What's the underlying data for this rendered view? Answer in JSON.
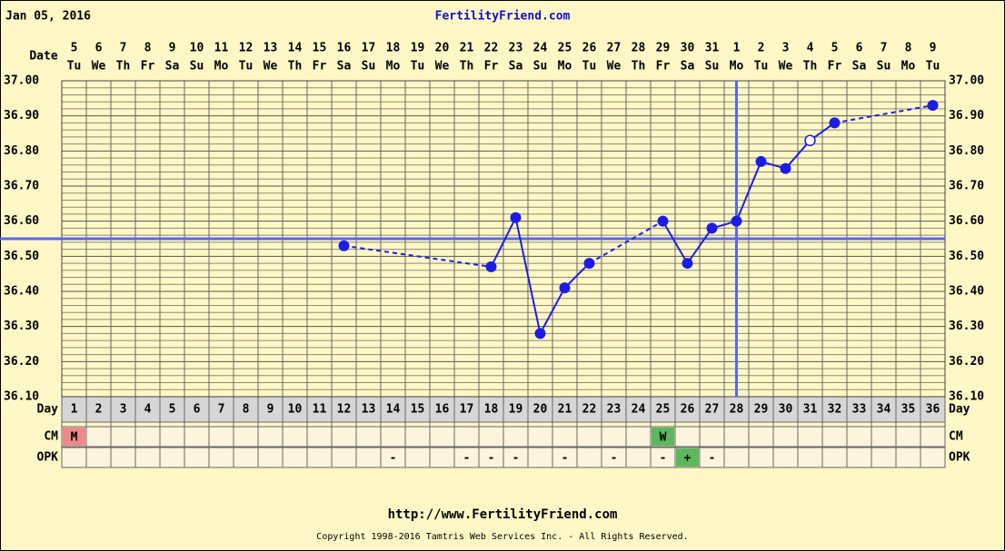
{
  "chart_data": {
    "type": "line",
    "title": "Jan 05, 2016",
    "site": "FertilityFriend.com",
    "date_label": "Date",
    "day_label": "Day",
    "cm_label": "CM",
    "opk_label": "OPK",
    "footer_url": "http://www.FertilityFriend.com",
    "copyright": "Copyright 1998-2016 Tamtris Web Services Inc. - All Rights Reserved.",
    "categories": [
      1,
      2,
      3,
      4,
      5,
      6,
      7,
      8,
      9,
      10,
      11,
      12,
      13,
      14,
      15,
      16,
      17,
      18,
      19,
      20,
      21,
      22,
      23,
      24,
      25,
      26,
      27,
      28,
      29,
      30,
      31,
      32,
      33,
      34,
      35,
      36
    ],
    "dates": [
      5,
      6,
      7,
      8,
      9,
      10,
      11,
      12,
      13,
      14,
      15,
      16,
      17,
      18,
      19,
      20,
      21,
      22,
      23,
      24,
      25,
      26,
      27,
      28,
      29,
      30,
      31,
      1,
      2,
      3,
      4,
      5,
      6,
      7,
      8,
      9
    ],
    "weekdays": [
      "Tu",
      "We",
      "Th",
      "Fr",
      "Sa",
      "Su",
      "Mo",
      "Tu",
      "We",
      "Th",
      "Fr",
      "Sa",
      "Su",
      "Mo",
      "Tu",
      "We",
      "Th",
      "Fr",
      "Sa",
      "Su",
      "Mo",
      "Tu",
      "We",
      "Th",
      "Fr",
      "Sa",
      "Su",
      "Mo",
      "Tu",
      "We",
      "Th",
      "Fr",
      "Sa",
      "Su",
      "Mo",
      "Tu"
    ],
    "values": [
      null,
      null,
      null,
      null,
      null,
      null,
      null,
      null,
      null,
      null,
      null,
      36.53,
      null,
      null,
      null,
      null,
      null,
      36.47,
      36.61,
      36.28,
      36.41,
      36.48,
      null,
      null,
      36.6,
      36.48,
      36.58,
      36.6,
      36.77,
      36.75,
      36.83,
      36.88,
      null,
      null,
      null,
      36.93
    ],
    "color": "#1c1ce6",
    "open_markers": [
      31
    ],
    "coverline": 36.55,
    "ovulation_day": 28,
    "line_color": "#5a64f0",
    "ylim": [
      36.1,
      37.0
    ],
    "yticks": [
      {
        "value": 36.1,
        "label": "36.10"
      },
      {
        "value": 36.2,
        "label": "36.20"
      },
      {
        "value": 36.3,
        "label": "36.30"
      },
      {
        "value": 36.4,
        "label": "36.40"
      },
      {
        "value": 36.5,
        "label": "36.50"
      },
      {
        "value": 36.6,
        "label": "36.60"
      },
      {
        "value": 36.7,
        "label": "36.70"
      },
      {
        "value": 36.8,
        "label": "36.80"
      },
      {
        "value": 36.9,
        "label": "36.90"
      },
      {
        "value": 37.0,
        "label": "37.00"
      }
    ],
    "minor_yticks": [
      36.12,
      36.14,
      36.16,
      36.18,
      36.22,
      36.24,
      36.26,
      36.28,
      36.32,
      36.34,
      36.36,
      36.38,
      36.42,
      36.44,
      36.46,
      36.48,
      36.52,
      36.54,
      36.56,
      36.58,
      36.62,
      36.64,
      36.66,
      36.68,
      36.72,
      36.74,
      36.76,
      36.78,
      36.82,
      36.84,
      36.86,
      36.88,
      36.92,
      36.94,
      36.96,
      36.98
    ],
    "cm": [
      "M",
      null,
      null,
      null,
      null,
      null,
      null,
      null,
      null,
      null,
      null,
      null,
      null,
      null,
      null,
      null,
      null,
      null,
      null,
      null,
      null,
      null,
      null,
      null,
      "W",
      null,
      null,
      null,
      null,
      null,
      null,
      null,
      null,
      null,
      null,
      null
    ],
    "opk": [
      null,
      null,
      null,
      null,
      null,
      null,
      null,
      null,
      null,
      null,
      null,
      null,
      null,
      "-",
      null,
      null,
      "-",
      "-",
      "-",
      null,
      "-",
      null,
      "-",
      null,
      "-",
      "+",
      "-",
      null,
      null,
      null,
      null,
      null,
      null,
      null,
      null,
      null
    ],
    "cell_colors": {
      "M": "#f08a8a",
      "W": "#5cb85c",
      "+": "#5cb85c"
    }
  }
}
